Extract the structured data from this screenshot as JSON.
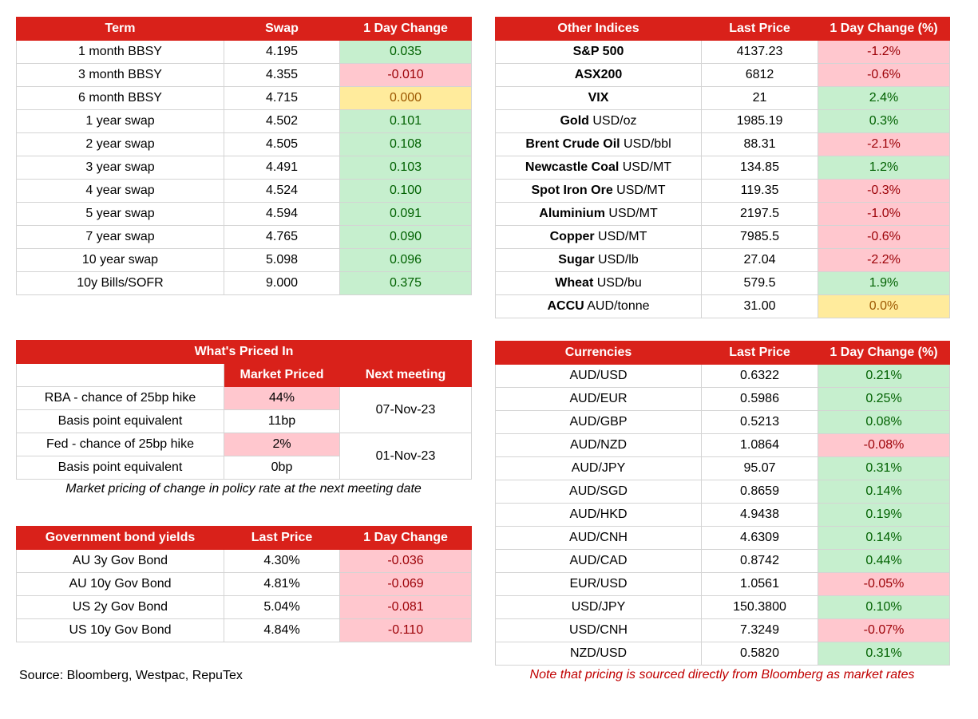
{
  "swaps": {
    "headers": [
      "Term",
      "Swap",
      "1 Day Change"
    ],
    "rows": [
      {
        "term": "1 month BBSY",
        "swap": "4.195",
        "change": "0.035",
        "dir": "pos"
      },
      {
        "term": "3 month BBSY",
        "swap": "4.355",
        "change": "-0.010",
        "dir": "neg"
      },
      {
        "term": "6 month BBSY",
        "swap": "4.715",
        "change": "0.000",
        "dir": "zero"
      },
      {
        "term": "1 year swap",
        "swap": "4.502",
        "change": "0.101",
        "dir": "pos"
      },
      {
        "term": "2 year swap",
        "swap": "4.505",
        "change": "0.108",
        "dir": "pos"
      },
      {
        "term": "3 year swap",
        "swap": "4.491",
        "change": "0.103",
        "dir": "pos"
      },
      {
        "term": "4 year swap",
        "swap": "4.524",
        "change": "0.100",
        "dir": "pos"
      },
      {
        "term": "5 year swap",
        "swap": "4.594",
        "change": "0.091",
        "dir": "pos"
      },
      {
        "term": "7 year swap",
        "swap": "4.765",
        "change": "0.090",
        "dir": "pos"
      },
      {
        "term": "10 year swap",
        "swap": "5.098",
        "change": "0.096",
        "dir": "pos"
      },
      {
        "term": "10y Bills/SOFR",
        "swap": "9.000",
        "change": "0.375",
        "dir": "pos"
      }
    ]
  },
  "indices": {
    "headers": [
      "Other Indices",
      "Last Price",
      "1 Day Change (%)"
    ],
    "rows": [
      {
        "name": "S&P 500",
        "unit": "",
        "price": "4137.23",
        "change": "-1.2%",
        "dir": "neg"
      },
      {
        "name": "ASX200",
        "unit": "",
        "price": "6812",
        "change": "-0.6%",
        "dir": "neg"
      },
      {
        "name": "VIX",
        "unit": "",
        "price": "21",
        "change": "2.4%",
        "dir": "pos"
      },
      {
        "name": "Gold",
        "unit": " USD/oz",
        "price": "1985.19",
        "change": "0.3%",
        "dir": "pos"
      },
      {
        "name": "Brent Crude Oil",
        "unit": " USD/bbl",
        "price": "88.31",
        "change": "-2.1%",
        "dir": "neg"
      },
      {
        "name": "Newcastle Coal",
        "unit": " USD/MT",
        "price": "134.85",
        "change": "1.2%",
        "dir": "pos"
      },
      {
        "name": "Spot Iron Ore",
        "unit": " USD/MT",
        "price": "119.35",
        "change": "-0.3%",
        "dir": "neg"
      },
      {
        "name": "Aluminium",
        "unit": " USD/MT",
        "price": "2197.5",
        "change": "-1.0%",
        "dir": "neg"
      },
      {
        "name": "Copper",
        "unit": " USD/MT",
        "price": "7985.5",
        "change": "-0.6%",
        "dir": "neg"
      },
      {
        "name": "Sugar",
        "unit": " USD/lb",
        "price": "27.04",
        "change": "-2.2%",
        "dir": "neg"
      },
      {
        "name": "Wheat",
        "unit": " USD/bu",
        "price": "579.5",
        "change": "1.9%",
        "dir": "pos"
      },
      {
        "name": "ACCU",
        "unit": " AUD/tonne",
        "price": "31.00",
        "change": "0.0%",
        "dir": "zero"
      }
    ]
  },
  "priced_in": {
    "title": "What's Priced In",
    "col_market": "Market Priced",
    "col_next": "Next meeting",
    "rows": [
      {
        "label": "RBA - chance of 25bp hike",
        "value": "44%"
      },
      {
        "label": "Basis point equivalent",
        "value": "11bp"
      },
      {
        "label": "Fed - chance of 25bp hike",
        "value": "2%"
      },
      {
        "label": "Basis point equivalent",
        "value": "0bp"
      }
    ],
    "meetings": [
      "07-Nov-23",
      "01-Nov-23"
    ],
    "note": "Market pricing of change in policy rate at the next meeting date"
  },
  "bonds": {
    "headers": [
      "Government bond yields",
      "Last Price",
      "1 Day Change"
    ],
    "rows": [
      {
        "name": "AU 3y Gov Bond",
        "price": "4.30%",
        "change": "-0.036",
        "dir": "neg"
      },
      {
        "name": "AU 10y Gov Bond",
        "price": "4.81%",
        "change": "-0.069",
        "dir": "neg"
      },
      {
        "name": "US 2y Gov Bond",
        "price": "5.04%",
        "change": "-0.081",
        "dir": "neg"
      },
      {
        "name": "US 10y Gov Bond",
        "price": "4.84%",
        "change": "-0.110",
        "dir": "neg"
      }
    ]
  },
  "currencies": {
    "headers": [
      "Currencies",
      "Last Price",
      "1 Day Change (%)"
    ],
    "rows": [
      {
        "pair": "AUD/USD",
        "price": "0.6322",
        "change": "0.21%",
        "dir": "pos"
      },
      {
        "pair": "AUD/EUR",
        "price": "0.5986",
        "change": "0.25%",
        "dir": "pos"
      },
      {
        "pair": "AUD/GBP",
        "price": "0.5213",
        "change": "0.08%",
        "dir": "pos"
      },
      {
        "pair": "AUD/NZD",
        "price": "1.0864",
        "change": "-0.08%",
        "dir": "neg"
      },
      {
        "pair": "AUD/JPY",
        "price": "95.07",
        "change": "0.31%",
        "dir": "pos"
      },
      {
        "pair": "AUD/SGD",
        "price": "0.8659",
        "change": "0.14%",
        "dir": "pos"
      },
      {
        "pair": "AUD/HKD",
        "price": "4.9438",
        "change": "0.19%",
        "dir": "pos"
      },
      {
        "pair": "AUD/CNH",
        "price": "4.6309",
        "change": "0.14%",
        "dir": "pos"
      },
      {
        "pair": "AUD/CAD",
        "price": "0.8742",
        "change": "0.44%",
        "dir": "pos"
      },
      {
        "pair": "EUR/USD",
        "price": "1.0561",
        "change": "-0.05%",
        "dir": "neg"
      },
      {
        "pair": "USD/JPY",
        "price": "150.3800",
        "change": "0.10%",
        "dir": "pos"
      },
      {
        "pair": "USD/CNH",
        "price": "7.3249",
        "change": "-0.07%",
        "dir": "neg"
      },
      {
        "pair": "NZD/USD",
        "price": "0.5820",
        "change": "0.31%",
        "dir": "pos"
      }
    ]
  },
  "footer": {
    "source": "Source: Bloomberg, Westpac, RepuTex",
    "disclaimer": "Note that pricing is sourced directly from Bloomberg as market rates"
  },
  "colors": {
    "header_red": "#d9211a",
    "positive_bg": "#c6efce",
    "negative_bg": "#ffc7ce",
    "neutral_bg": "#ffeb9c",
    "disclaimer_text": "#c00000"
  }
}
